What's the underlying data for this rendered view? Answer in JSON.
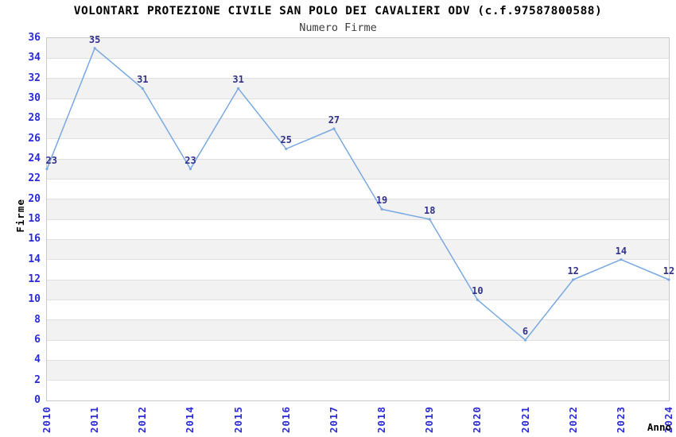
{
  "title": "VOLONTARI PROTEZIONE CIVILE SAN POLO DEI CAVALIERI ODV (c.f.97587800588)",
  "subtitle": "Numero Firme",
  "chart_data": {
    "type": "line",
    "title": "VOLONTARI PROTEZIONE CIVILE SAN POLO DEI CAVALIERI ODV (c.f.97587800588)",
    "subtitle": "Numero Firme",
    "xlabel": "Anno",
    "ylabel": "Firme",
    "categories": [
      "2010",
      "2011",
      "2012",
      "2014",
      "2015",
      "2016",
      "2017",
      "2018",
      "2019",
      "2020",
      "2021",
      "2022",
      "2023",
      "2024"
    ],
    "values": [
      23,
      35,
      31,
      23,
      31,
      25,
      27,
      19,
      18,
      10,
      6,
      12,
      14,
      12
    ],
    "point_labels": [
      "23",
      "35",
      "31",
      "23",
      "31",
      "25",
      "27",
      "19",
      "18",
      "10",
      "6",
      "12",
      "14",
      "12"
    ],
    "show_point_labels": true,
    "ylim": [
      0,
      36
    ],
    "ytick_step": 2,
    "yticks": [
      "0",
      "2",
      "4",
      "6",
      "8",
      "10",
      "12",
      "14",
      "16",
      "18",
      "20",
      "22",
      "24",
      "26",
      "28",
      "30",
      "32",
      "34",
      "36"
    ],
    "legend": "none",
    "grid": "horizontal-bands",
    "colors": {
      "line": "#79a9e2",
      "band_fill": "#f2f2f2",
      "gridline": "#e0e0e0",
      "plot_border": "#c9c9c9",
      "axis_tick_label": "#2b2bd5",
      "point_label": "#31318c",
      "title": "#000000",
      "subtitle": "#3d3d3d",
      "axis_title": "#000000",
      "background": "#ffffff"
    }
  }
}
